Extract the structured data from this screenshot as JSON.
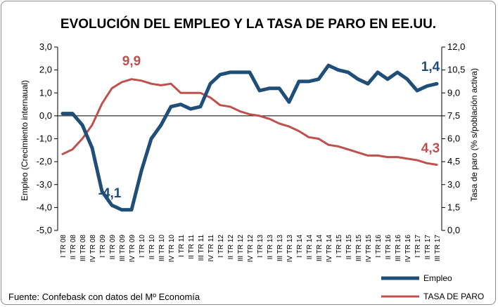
{
  "chart_data": {
    "type": "line",
    "title": "EVOLUCIÓN DEL EMPLEO Y LA TASA DE PARO EN EE.UU.",
    "ylabel_left": "Empleo (Crecimiento internaual)",
    "ylabel_right": "Tasa de paro (% s/población activa)",
    "ylim_left": [
      -5,
      3
    ],
    "ylim_right": [
      0,
      12
    ],
    "yticks_left": [
      "3,0",
      "2,0",
      "1,0",
      "0,0",
      "-1,0",
      "-2,0",
      "-3,0",
      "-4,0",
      "-5,0"
    ],
    "yticks_right": [
      "12,0",
      "10,5",
      "9,0",
      "7,5",
      "6,0",
      "4,5",
      "3,0",
      "1,5",
      "0,0"
    ],
    "categories": [
      "I TR 08",
      "II TR 08",
      "III TR 08",
      "IV TR 08",
      "I TR 09",
      "II TR 09",
      "III TR 09",
      "IV TR 09",
      "I TR 10",
      "II TR 10",
      "III TR 10",
      "IV TR 10",
      "I TR 11",
      "II TR 11",
      "III TR 11",
      "IV TR 11",
      "I TR 12",
      "II TR 12",
      "III TR 12",
      "IV TR 12",
      "I TR 13",
      "II TR 13",
      "III TR 13",
      "IV TR 13",
      "I TR 14",
      "II TR 14",
      "III TR 14",
      "IV TR 14",
      "I TR 15",
      "II TR 15",
      "III TR 15",
      "IV TR 15",
      "I TR 16",
      "II TR 16",
      "III TR 16",
      "IV TR 16",
      "I TR 17",
      "II TR 17",
      "III TR 17"
    ],
    "series": [
      {
        "name": "Empleo",
        "axis": "left",
        "color": "#1f4e79",
        "values": [
          0.1,
          0.1,
          -0.4,
          -1.4,
          -3.3,
          -3.9,
          -4.1,
          -4.1,
          -2.4,
          -1.0,
          -0.4,
          0.4,
          0.5,
          0.3,
          0.4,
          1.4,
          1.8,
          1.9,
          1.9,
          1.9,
          1.1,
          1.2,
          1.2,
          0.6,
          1.5,
          1.5,
          1.6,
          2.2,
          2.0,
          1.9,
          1.6,
          1.4,
          1.9,
          1.6,
          1.9,
          1.6,
          1.1,
          1.3,
          1.4
        ]
      },
      {
        "name": "TASA DE PARO",
        "axis": "right",
        "color": "#c0504d",
        "values": [
          5.0,
          5.3,
          6.0,
          6.9,
          8.3,
          9.3,
          9.7,
          9.9,
          9.8,
          9.6,
          9.5,
          9.6,
          9.0,
          9.0,
          9.0,
          8.7,
          8.2,
          8.1,
          7.8,
          7.6,
          7.5,
          7.3,
          7.0,
          6.8,
          6.5,
          6.1,
          6.0,
          5.6,
          5.5,
          5.3,
          5.1,
          4.9,
          4.9,
          4.8,
          4.8,
          4.7,
          4.6,
          4.4,
          4.3
        ]
      }
    ],
    "annotations": {
      "paro_peak": "9,9",
      "empleo_trough": "-4,1",
      "empleo_last": "1,4",
      "paro_last": "4,3"
    },
    "legend": [
      "Empleo",
      "TASA DE PARO"
    ],
    "legend_position": "bottom-right",
    "grid": false
  },
  "footer": {
    "source": "Fuente: Confebask con datos del Mº Economía"
  }
}
